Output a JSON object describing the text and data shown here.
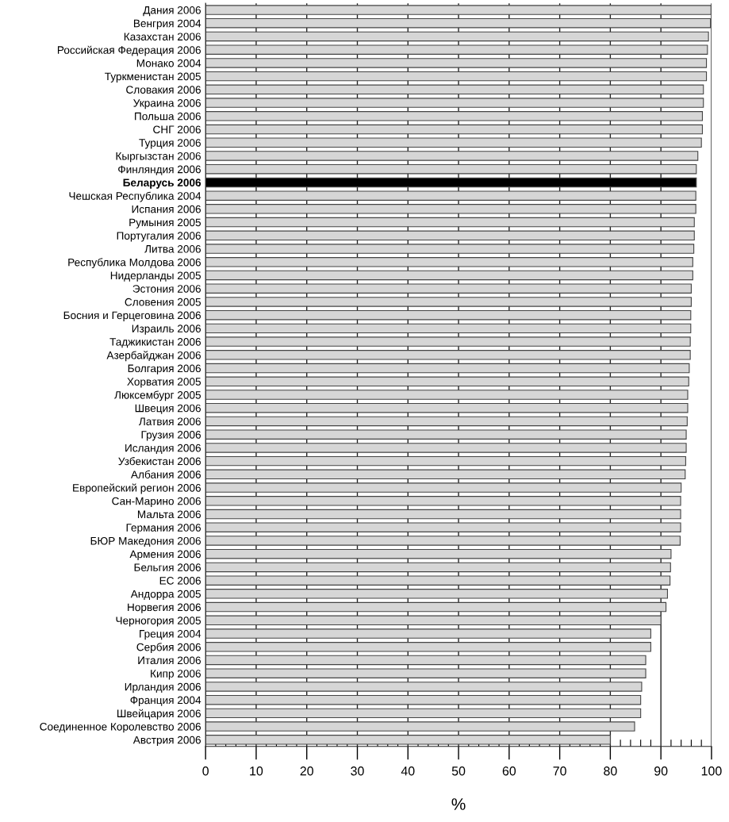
{
  "chart_data": {
    "type": "bar",
    "orientation": "horizontal",
    "xlabel": "%",
    "categories": [
      "Дания 2006",
      "Венгрия 2004",
      "Казахстан 2006",
      "Российская Федерация 2006",
      "Монако 2004",
      "Туркменистан 2005",
      "Словакия 2006",
      "Украина 2006",
      "Польша 2006",
      "СНГ 2006",
      "Турция 2006",
      "Кыргызстан 2006",
      "Финляндия 2006",
      "Беларусь 2006",
      "Чешская Республика 2004",
      "Испания 2006",
      "Румыния 2005",
      "Португалия 2006",
      "Литва 2006",
      "Республика Молдова 2006",
      "Нидерланды 2005",
      "Эстония 2006",
      "Словения 2005",
      "Босния и Герцеговина 2006",
      "Израиль 2006",
      "Таджикистан 2006",
      "Азербайджан 2006",
      "Болгария 2006",
      "Хорватия 2005",
      "Люксембург 2005",
      "Швеция 2006",
      "Латвия 2006",
      "Грузия 2006",
      "Исландия 2006",
      "Узбекистан 2006",
      "Албания 2006",
      "Европейский регион 2006",
      "Сан-Марино 2006",
      "Мальта 2006",
      "Германия 2006",
      "БЮР Македония 2006",
      "Армения 2006",
      "Бельгия 2006",
      "ЕС 2006",
      "Андорра 2005",
      "Норвегия 2006",
      "Черногория 2005",
      "Греция 2004",
      "Сербия 2006",
      "Италия 2006",
      "Кипр 2006",
      "Ирландия 2006",
      "Франция 2004",
      "Швейцария 2006",
      "Соединенное Королевство 2006",
      "Австрия 2006"
    ],
    "values": [
      99.9,
      99.8,
      99.4,
      99.2,
      99.0,
      99.0,
      98.4,
      98.4,
      98.2,
      98.2,
      98.0,
      97.3,
      97.0,
      97.0,
      96.9,
      96.9,
      96.6,
      96.6,
      96.5,
      96.3,
      96.3,
      96.0,
      96.0,
      95.9,
      95.9,
      95.8,
      95.8,
      95.6,
      95.5,
      95.3,
      95.3,
      95.2,
      95.0,
      95.0,
      94.9,
      94.8,
      94.0,
      93.9,
      93.9,
      93.9,
      93.8,
      92.0,
      91.9,
      91.8,
      91.3,
      91.0,
      90.0,
      88.0,
      88.0,
      87.0,
      87.0,
      86.2,
      86.0,
      86.0,
      84.8,
      80.0
    ],
    "colors": [
      "#d6d6d6",
      "#d6d6d6",
      "#d6d6d6",
      "#d6d6d6",
      "#d6d6d6",
      "#d6d6d6",
      "#d6d6d6",
      "#d6d6d6",
      "#d6d6d6",
      "#d6d6d6",
      "#d6d6d6",
      "#d6d6d6",
      "#d6d6d6",
      "#000000",
      "#d6d6d6",
      "#d6d6d6",
      "#d6d6d6",
      "#d6d6d6",
      "#d6d6d6",
      "#d6d6d6",
      "#d6d6d6",
      "#d6d6d6",
      "#d6d6d6",
      "#d6d6d6",
      "#d6d6d6",
      "#d6d6d6",
      "#d6d6d6",
      "#d6d6d6",
      "#d6d6d6",
      "#d6d6d6",
      "#d6d6d6",
      "#d6d6d6",
      "#d6d6d6",
      "#d6d6d6",
      "#d6d6d6",
      "#d6d6d6",
      "#d6d6d6",
      "#d6d6d6",
      "#d6d6d6",
      "#d6d6d6",
      "#d6d6d6",
      "#d6d6d6",
      "#d6d6d6",
      "#d6d6d6",
      "#d6d6d6",
      "#d6d6d6",
      "#d6d6d6",
      "#d6d6d6",
      "#d6d6d6",
      "#d6d6d6",
      "#d6d6d6",
      "#d6d6d6",
      "#d6d6d6",
      "#d6d6d6",
      "#d6d6d6",
      "#d6d6d6"
    ],
    "xlim": [
      0,
      100
    ],
    "xticks": [
      0,
      {
        "value": 2,
        "label": null
      },
      {
        "value": 4,
        "label": null
      },
      {
        "value": 6,
        "label": null
      },
      {
        "value": 8,
        "label": null
      },
      10,
      {
        "value": 12,
        "label": null
      },
      {
        "value": 14,
        "label": null
      },
      {
        "value": 16,
        "label": null
      },
      {
        "value": 18,
        "label": null
      },
      20,
      {
        "value": 22,
        "label": null
      },
      {
        "value": 24,
        "label": null
      },
      {
        "value": 26,
        "label": null
      },
      {
        "value": 28,
        "label": null
      },
      30,
      {
        "value": 32,
        "label": null
      },
      {
        "value": 34,
        "label": null
      },
      {
        "value": 36,
        "label": null
      },
      {
        "value": 38,
        "label": null
      },
      40,
      {
        "value": 42,
        "label": null
      },
      {
        "value": 44,
        "label": null
      },
      {
        "value": 46,
        "label": null
      },
      {
        "value": 48,
        "label": null
      },
      50,
      {
        "value": 52,
        "label": null
      },
      {
        "value": 54,
        "label": null
      },
      {
        "value": 56,
        "label": null
      },
      {
        "value": 58,
        "label": null
      },
      60,
      {
        "value": 62,
        "label": null
      },
      {
        "value": 64,
        "label": null
      },
      {
        "value": 66,
        "label": null
      },
      {
        "value": 68,
        "label": null
      },
      70,
      {
        "value": 72,
        "label": null
      },
      {
        "value": 74,
        "label": null
      },
      {
        "value": 76,
        "label": null
      },
      {
        "value": 78,
        "label": null
      },
      80,
      {
        "value": 82,
        "label": null
      },
      {
        "value": 84,
        "label": null
      },
      {
        "value": 86,
        "label": null
      },
      {
        "value": 88,
        "label": null
      },
      90,
      {
        "value": 92,
        "label": null
      },
      {
        "value": 94,
        "label": null
      },
      {
        "value": 96,
        "label": null
      },
      {
        "value": 98,
        "label": null
      },
      100
    ],
    "grid": "x",
    "legend": false
  }
}
